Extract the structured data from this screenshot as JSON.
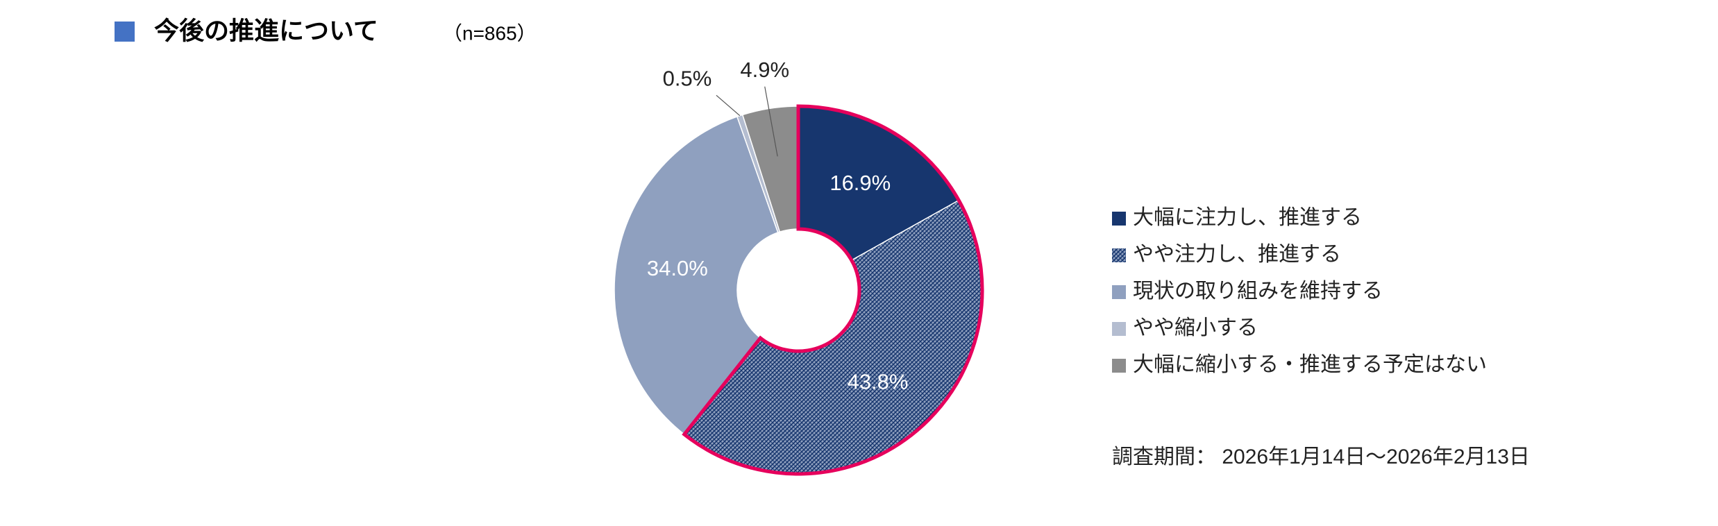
{
  "chart_data": {
    "type": "pie",
    "title": "今後の推進について",
    "subtitle": "（n=865）",
    "categories": [
      "大幅に注力し、推進する",
      "やや注力し、推進する",
      "現状の取り組みを維持する",
      "やや縮小する",
      "大幅に縮小する・推進する予定はない"
    ],
    "values": [
      16.9,
      43.8,
      34.0,
      0.5,
      4.9
    ],
    "value_labels": [
      "16.9%",
      "43.8%",
      "34.0%",
      "0.5%",
      "4.9%"
    ],
    "colors": [
      "#17366e",
      "#8fa0bf",
      "#8fa0bf",
      "#b4bdd0",
      "#8c8c8c"
    ],
    "patterns": [
      "solid",
      "hatch",
      "solid",
      "solid",
      "solid"
    ],
    "highlighted": [
      true,
      true,
      false,
      false,
      false
    ],
    "highlight_color": "#e6005c",
    "donut": true,
    "legend": "right",
    "note": "調査期間： 2026年1月14日～2026年2月13日"
  }
}
